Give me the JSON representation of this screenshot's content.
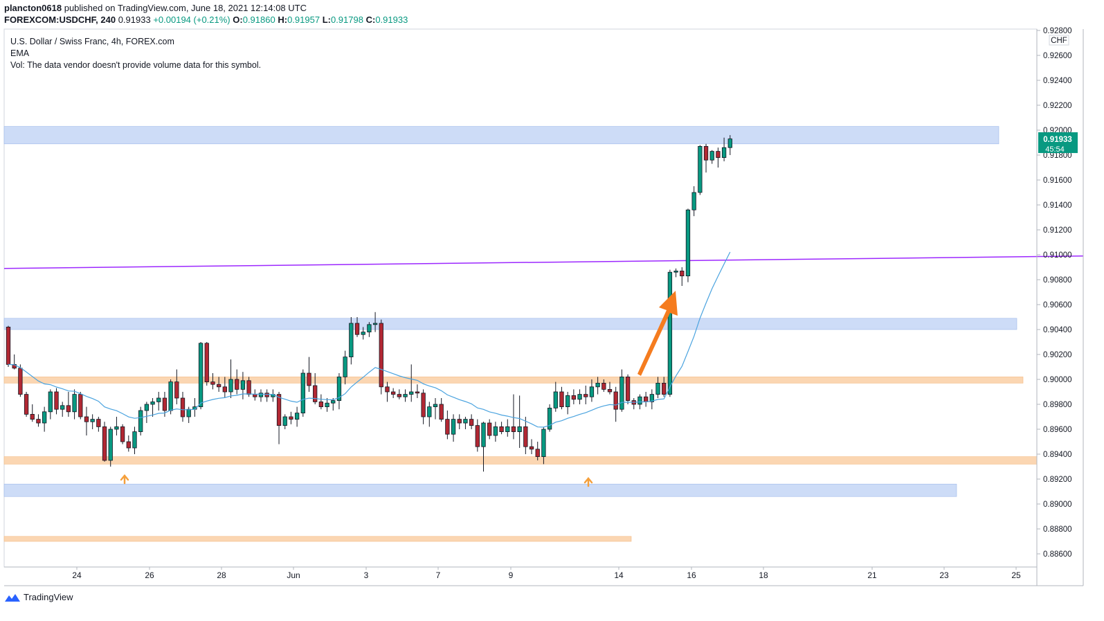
{
  "header": {
    "publisher": "plancton0618",
    "published_text": "published on TradingView.com, June 18, 2021 12:14:08 UTC",
    "symbol": "FOREXCOM:USDCHF, 240",
    "last": "0.91933",
    "change": "+0.00194 (+0.21%)",
    "o_label": "O:",
    "o_value": "0.91860",
    "h_label": "H:",
    "h_value": "0.91957",
    "l_label": "L:",
    "l_value": "0.91798",
    "c_label": "C:",
    "c_value": "0.91933"
  },
  "legend": {
    "title": "U.S. Dollar / Swiss Franc, 4h, FOREX.com",
    "ema": "EMA",
    "vol": "Vol: The data vendor doesn't provide volume data for this symbol."
  },
  "footer": {
    "brand": "TradingView"
  },
  "colors": {
    "up": "#089981",
    "down": "#b22833",
    "ema": "#4aa3df",
    "trend": "#9c27ff",
    "blue_zone": "#cddcf7",
    "orange_zone": "#fbd6b2",
    "arrow": "#f57c1f"
  },
  "chart_data": {
    "type": "candlestick",
    "title": "U.S. Dollar / Swiss Franc, 4h, FOREX.com",
    "currency": "CHF",
    "price_tag": "0.91933",
    "countdown": "45:54",
    "ylim": [
      0.885,
      0.928
    ],
    "y_ticks": [
      "0.92800",
      "0.92600",
      "0.92400",
      "0.92200",
      "0.92000",
      "0.91800",
      "0.91600",
      "0.91400",
      "0.91200",
      "0.91000",
      "0.90800",
      "0.90600",
      "0.90400",
      "0.90200",
      "0.90000",
      "0.89800",
      "0.89600",
      "0.89400",
      "0.89200",
      "0.89000",
      "0.88800",
      "0.88600"
    ],
    "x_labels": [
      "24",
      "26",
      "28",
      "Jun",
      "3",
      "7",
      "9",
      "14",
      "16",
      "18",
      "21",
      "23",
      "25"
    ],
    "zones": [
      {
        "kind": "resistance",
        "color": "blue",
        "low": 0.9189,
        "high": 0.9203
      },
      {
        "kind": "resistance",
        "color": "blue",
        "low": 0.904,
        "high": 0.9049
      },
      {
        "kind": "pivot",
        "color": "orange",
        "low": 0.8997,
        "high": 0.9002
      },
      {
        "kind": "support",
        "color": "orange",
        "low": 0.8932,
        "high": 0.8938
      },
      {
        "kind": "support",
        "color": "blue",
        "low": 0.8906,
        "high": 0.8916
      },
      {
        "kind": "support",
        "color": "orange",
        "low": 0.887,
        "high": 0.8874
      }
    ],
    "trendline": {
      "start": 0.9089,
      "end": 0.9099
    },
    "ema_note": "EMA",
    "series": [
      {
        "name": "USDCHF 4h",
        "candles": [
          [
            0.9042,
            0.9043,
            0.901,
            0.9012
          ],
          [
            0.9012,
            0.902,
            0.9008,
            0.9009
          ],
          [
            0.9009,
            0.9012,
            0.8986,
            0.8988
          ],
          [
            0.8988,
            0.899,
            0.897,
            0.8972
          ],
          [
            0.8972,
            0.898,
            0.8966,
            0.8968
          ],
          [
            0.8968,
            0.8972,
            0.8962,
            0.8965
          ],
          [
            0.8965,
            0.8978,
            0.8958,
            0.8974
          ],
          [
            0.8974,
            0.8992,
            0.8968,
            0.899
          ],
          [
            0.899,
            0.8993,
            0.8972,
            0.8976
          ],
          [
            0.8976,
            0.8982,
            0.897,
            0.8979
          ],
          [
            0.8979,
            0.899,
            0.897,
            0.8974
          ],
          [
            0.8974,
            0.8992,
            0.8968,
            0.8988
          ],
          [
            0.8988,
            0.899,
            0.8968,
            0.897
          ],
          [
            0.897,
            0.8978,
            0.8955,
            0.8966
          ],
          [
            0.8966,
            0.8972,
            0.896,
            0.8968
          ],
          [
            0.8968,
            0.897,
            0.8958,
            0.8962
          ],
          [
            0.8962,
            0.8966,
            0.8934,
            0.8935
          ],
          [
            0.8935,
            0.8962,
            0.893,
            0.896
          ],
          [
            0.896,
            0.897,
            0.8955,
            0.8962
          ],
          [
            0.8962,
            0.8964,
            0.8948,
            0.895
          ],
          [
            0.895,
            0.8955,
            0.8942,
            0.8945
          ],
          [
            0.8945,
            0.8962,
            0.894,
            0.8958
          ],
          [
            0.8958,
            0.8978,
            0.8955,
            0.8975
          ],
          [
            0.8975,
            0.8982,
            0.8965,
            0.898
          ],
          [
            0.898,
            0.8985,
            0.897,
            0.8982
          ],
          [
            0.8982,
            0.899,
            0.8975,
            0.8985
          ],
          [
            0.8985,
            0.899,
            0.897,
            0.8975
          ],
          [
            0.8975,
            0.9,
            0.8972,
            0.8998
          ],
          [
            0.8998,
            0.9008,
            0.898,
            0.8985
          ],
          [
            0.8985,
            0.899,
            0.8966,
            0.897
          ],
          [
            0.897,
            0.8978,
            0.8965,
            0.8976
          ],
          [
            0.8976,
            0.8985,
            0.897,
            0.8978
          ],
          [
            0.8978,
            0.903,
            0.8976,
            0.9029
          ],
          [
            0.9029,
            0.903,
            0.8995,
            0.8998
          ],
          [
            0.8998,
            0.9005,
            0.8992,
            0.8996
          ],
          [
            0.8996,
            0.9002,
            0.899,
            0.8994
          ],
          [
            0.8994,
            0.9002,
            0.8985,
            0.899
          ],
          [
            0.899,
            0.9016,
            0.8985,
            0.9
          ],
          [
            0.9,
            0.9008,
            0.8988,
            0.8992
          ],
          [
            0.8992,
            0.9006,
            0.8984,
            0.8999
          ],
          [
            0.8999,
            0.9002,
            0.8986,
            0.8988
          ],
          [
            0.8988,
            0.8992,
            0.8983,
            0.8986
          ],
          [
            0.8986,
            0.8992,
            0.8982,
            0.8989
          ],
          [
            0.8989,
            0.8992,
            0.8982,
            0.8986
          ],
          [
            0.8986,
            0.8992,
            0.8982,
            0.8988
          ],
          [
            0.8988,
            0.899,
            0.8948,
            0.8963
          ],
          [
            0.8963,
            0.8972,
            0.896,
            0.897
          ],
          [
            0.897,
            0.8974,
            0.8964,
            0.8968
          ],
          [
            0.8968,
            0.8978,
            0.8962,
            0.8973
          ],
          [
            0.8973,
            0.9008,
            0.897,
            0.9005
          ],
          [
            0.9005,
            0.9018,
            0.899,
            0.8995
          ],
          [
            0.8995,
            0.9005,
            0.898,
            0.8982
          ],
          [
            0.8982,
            0.8988,
            0.8976,
            0.8978
          ],
          [
            0.8978,
            0.8985,
            0.8974,
            0.8981
          ],
          [
            0.8981,
            0.8985,
            0.8975,
            0.8983
          ],
          [
            0.8983,
            0.9005,
            0.8976,
            0.9002
          ],
          [
            0.9002,
            0.9023,
            0.8996,
            0.9018
          ],
          [
            0.9018,
            0.905,
            0.9012,
            0.9045
          ],
          [
            0.9045,
            0.905,
            0.9034,
            0.9036
          ],
          [
            0.9036,
            0.9042,
            0.9032,
            0.9038
          ],
          [
            0.9038,
            0.9046,
            0.9034,
            0.9044
          ],
          [
            0.9044,
            0.9054,
            0.9038,
            0.9045
          ],
          [
            0.9045,
            0.9048,
            0.8988,
            0.8994
          ],
          [
            0.8994,
            0.8998,
            0.8982,
            0.899
          ],
          [
            0.899,
            0.8993,
            0.8985,
            0.8988
          ],
          [
            0.8988,
            0.8992,
            0.8984,
            0.8986
          ],
          [
            0.8986,
            0.8992,
            0.8982,
            0.8988
          ],
          [
            0.8988,
            0.9012,
            0.8982,
            0.899
          ],
          [
            0.899,
            0.8996,
            0.8985,
            0.8989
          ],
          [
            0.8989,
            0.8992,
            0.8964,
            0.897
          ],
          [
            0.897,
            0.8982,
            0.8962,
            0.8978
          ],
          [
            0.8978,
            0.8985,
            0.8968,
            0.898
          ],
          [
            0.898,
            0.8985,
            0.8966,
            0.8968
          ],
          [
            0.8968,
            0.8975,
            0.8952,
            0.8956
          ],
          [
            0.8956,
            0.8972,
            0.895,
            0.8968
          ],
          [
            0.8968,
            0.8972,
            0.896,
            0.8965
          ],
          [
            0.8965,
            0.897,
            0.896,
            0.8968
          ],
          [
            0.8968,
            0.8972,
            0.896,
            0.8963
          ],
          [
            0.8963,
            0.8968,
            0.8942,
            0.8946
          ],
          [
            0.8946,
            0.8966,
            0.8926,
            0.8965
          ],
          [
            0.8965,
            0.8968,
            0.8952,
            0.8955
          ],
          [
            0.8955,
            0.8966,
            0.895,
            0.8962
          ],
          [
            0.8962,
            0.8966,
            0.8956,
            0.8958
          ],
          [
            0.8958,
            0.8968,
            0.8954,
            0.8962
          ],
          [
            0.8962,
            0.8988,
            0.8952,
            0.8958
          ],
          [
            0.8958,
            0.8987,
            0.8945,
            0.8962
          ],
          [
            0.8962,
            0.897,
            0.894,
            0.8946
          ],
          [
            0.8946,
            0.8952,
            0.894,
            0.8944
          ],
          [
            0.8944,
            0.895,
            0.8935,
            0.8938
          ],
          [
            0.8938,
            0.8962,
            0.8932,
            0.896
          ],
          [
            0.896,
            0.898,
            0.8958,
            0.8977
          ],
          [
            0.8977,
            0.8998,
            0.8974,
            0.899
          ],
          [
            0.899,
            0.8994,
            0.8976,
            0.8978
          ],
          [
            0.8978,
            0.899,
            0.8972,
            0.8987
          ],
          [
            0.8987,
            0.8992,
            0.898,
            0.8984
          ],
          [
            0.8984,
            0.8992,
            0.898,
            0.8988
          ],
          [
            0.8988,
            0.8995,
            0.898,
            0.8986
          ],
          [
            0.8986,
            0.9,
            0.8982,
            0.8994
          ],
          [
            0.8994,
            0.9002,
            0.8988,
            0.8997
          ],
          [
            0.8997,
            0.9,
            0.899,
            0.8992
          ],
          [
            0.8992,
            0.8998,
            0.8988,
            0.899
          ],
          [
            0.899,
            0.8994,
            0.8966,
            0.8976
          ],
          [
            0.8976,
            0.9008,
            0.8974,
            0.9002
          ],
          [
            0.9002,
            0.9004,
            0.898,
            0.8983
          ],
          [
            0.8983,
            0.8985,
            0.8976,
            0.898
          ],
          [
            0.898,
            0.8988,
            0.8976,
            0.8986
          ],
          [
            0.8986,
            0.899,
            0.8978,
            0.8982
          ],
          [
            0.8982,
            0.8992,
            0.8976,
            0.8988
          ],
          [
            0.8988,
            0.9002,
            0.8985,
            0.8997
          ],
          [
            0.8997,
            0.9002,
            0.8986,
            0.8988
          ],
          [
            0.8988,
            0.9088,
            0.8986,
            0.9086
          ],
          [
            0.9086,
            0.9089,
            0.9082,
            0.9087
          ],
          [
            0.9087,
            0.909,
            0.9075,
            0.9083
          ],
          [
            0.9083,
            0.9137,
            0.9078,
            0.9136
          ],
          [
            0.9136,
            0.9155,
            0.9131,
            0.915
          ],
          [
            0.915,
            0.9188,
            0.9148,
            0.9187
          ],
          [
            0.9187,
            0.9189,
            0.9166,
            0.9176
          ],
          [
            0.9176,
            0.9184,
            0.9173,
            0.9183
          ],
          [
            0.9183,
            0.9186,
            0.917,
            0.9178
          ],
          [
            0.9178,
            0.9194,
            0.9175,
            0.9186
          ],
          [
            0.9186,
            0.9196,
            0.918,
            0.9193
          ]
        ]
      }
    ]
  }
}
